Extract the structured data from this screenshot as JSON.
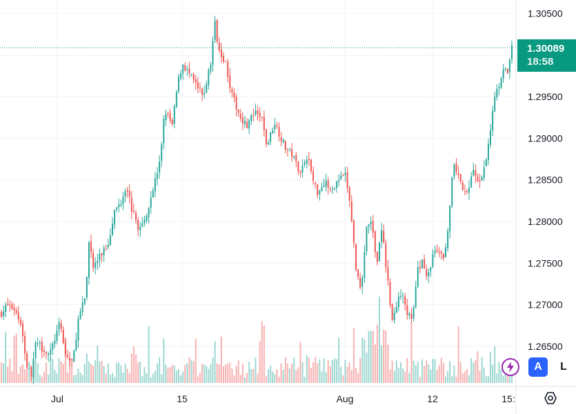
{
  "chart_data": {
    "type": "candlestick",
    "y_range": [
      1.2615,
      1.3058
    ],
    "y_ticks": [
      "1.30500",
      "1.30000",
      "1.29500",
      "1.29000",
      "1.28500",
      "1.28000",
      "1.27500",
      "1.27000",
      "1.26500"
    ],
    "x_ticks": [
      "Jul",
      "15",
      "Aug",
      "12",
      "15:"
    ],
    "current_price": "1.30089",
    "countdown": "18:58",
    "price_path": [
      [
        0,
        1.269
      ],
      [
        0.012,
        1.27
      ],
      [
        0.025,
        1.2695
      ],
      [
        0.04,
        1.2675
      ],
      [
        0.048,
        1.263
      ],
      [
        0.058,
        1.2615
      ],
      [
        0.068,
        1.2655
      ],
      [
        0.08,
        1.2648
      ],
      [
        0.095,
        1.264
      ],
      [
        0.105,
        1.266
      ],
      [
        0.115,
        1.2678
      ],
      [
        0.125,
        1.264
      ],
      [
        0.14,
        1.263
      ],
      [
        0.15,
        1.268
      ],
      [
        0.165,
        1.271
      ],
      [
        0.172,
        1.278
      ],
      [
        0.18,
        1.2745
      ],
      [
        0.195,
        1.276
      ],
      [
        0.21,
        1.2775
      ],
      [
        0.22,
        1.281
      ],
      [
        0.235,
        1.2825
      ],
      [
        0.245,
        1.2845
      ],
      [
        0.255,
        1.2815
      ],
      [
        0.27,
        1.279
      ],
      [
        0.28,
        1.28
      ],
      [
        0.295,
        1.2835
      ],
      [
        0.31,
        1.287
      ],
      [
        0.32,
        1.2935
      ],
      [
        0.335,
        1.2915
      ],
      [
        0.345,
        1.2965
      ],
      [
        0.355,
        1.299
      ],
      [
        0.37,
        1.2975
      ],
      [
        0.385,
        1.296
      ],
      [
        0.395,
        1.295
      ],
      [
        0.41,
        1.299
      ],
      [
        0.418,
        1.304
      ],
      [
        0.425,
        1.301
      ],
      [
        0.44,
        1.299
      ],
      [
        0.45,
        1.2955
      ],
      [
        0.465,
        1.293
      ],
      [
        0.48,
        1.2915
      ],
      [
        0.495,
        1.293
      ],
      [
        0.51,
        1.2925
      ],
      [
        0.52,
        1.289
      ],
      [
        0.535,
        1.292
      ],
      [
        0.545,
        1.2905
      ],
      [
        0.555,
        1.289
      ],
      [
        0.57,
        1.288
      ],
      [
        0.585,
        1.286
      ],
      [
        0.6,
        1.288
      ],
      [
        0.61,
        1.285
      ],
      [
        0.62,
        1.2835
      ],
      [
        0.635,
        1.285
      ],
      [
        0.645,
        1.2835
      ],
      [
        0.66,
        1.285
      ],
      [
        0.675,
        1.2855
      ],
      [
        0.685,
        1.281
      ],
      [
        0.695,
        1.274
      ],
      [
        0.705,
        1.272
      ],
      [
        0.715,
        1.279
      ],
      [
        0.725,
        1.28
      ],
      [
        0.735,
        1.275
      ],
      [
        0.745,
        1.279
      ],
      [
        0.755,
        1.274
      ],
      [
        0.765,
        1.268
      ],
      [
        0.775,
        1.27
      ],
      [
        0.785,
        1.272
      ],
      [
        0.795,
        1.269
      ],
      [
        0.805,
        1.268
      ],
      [
        0.815,
        1.274
      ],
      [
        0.825,
        1.2755
      ],
      [
        0.835,
        1.273
      ],
      [
        0.845,
        1.276
      ],
      [
        0.855,
        1.2765
      ],
      [
        0.865,
        1.2755
      ],
      [
        0.875,
        1.279
      ],
      [
        0.885,
        1.2865
      ],
      [
        0.895,
        1.286
      ],
      [
        0.905,
        1.283
      ],
      [
        0.915,
        1.284
      ],
      [
        0.925,
        1.2865
      ],
      [
        0.935,
        1.284
      ],
      [
        0.945,
        1.286
      ],
      [
        0.955,
        1.2895
      ],
      [
        0.965,
        1.295
      ],
      [
        0.975,
        1.2965
      ],
      [
        0.985,
        1.299
      ],
      [
        0.992,
        1.2975
      ],
      [
        1.0,
        1.30089
      ]
    ],
    "colors": {
      "up": "#26a69a",
      "down": "#ef5350",
      "price_tag": "#089981"
    }
  },
  "controls": {
    "auto_label": "A",
    "log_label": "L"
  }
}
